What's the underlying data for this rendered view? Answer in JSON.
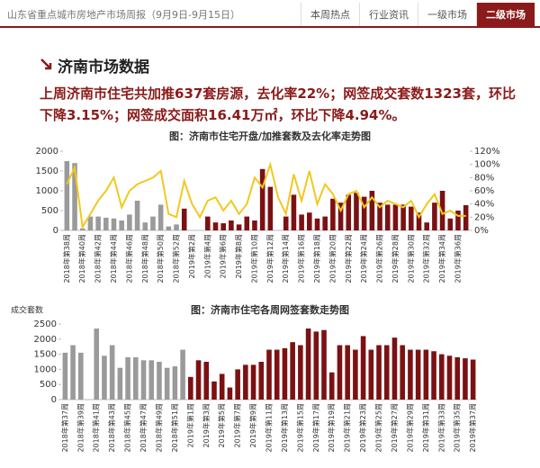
{
  "header": {
    "title": "山东省重点城市房地产市场周报（9月9日-9月15日）",
    "tabs": [
      "本周热点",
      "行业资讯",
      "一级市场",
      "二级市场"
    ],
    "active_tab": 3
  },
  "section": {
    "title": "济南市场数据",
    "summary": "上周济南市住宅共加推637套房源，去化率22%；网签成交套数1323套，环比下降3.15%；网签成交面积16.41万㎡，环比下降4.94%。"
  },
  "chart_data": [
    {
      "type": "bar",
      "title": "图：济南市住宅开盘/加推套数及去化率走势图",
      "categories": [
        "2018年第38周",
        null,
        "2018年第40周",
        null,
        "2018年第42周",
        null,
        "2018年第44周",
        null,
        "2018年第46周",
        null,
        "2018年第48周",
        null,
        "2018年第50周",
        null,
        "2018年第52周",
        null,
        "2019年第2周",
        null,
        "2019年第4周",
        null,
        "2019年第6周",
        null,
        "2019年第8周",
        null,
        "2019年第10周",
        null,
        "2019年第12周",
        null,
        "2019年第14周",
        null,
        "2019年第16周",
        null,
        "2019年第18周",
        null,
        "2019年第20周",
        null,
        "2019年第22周",
        null,
        "2019年第24周",
        null,
        "2019年第26周",
        null,
        "2019年第28周",
        null,
        "2019年第30周",
        null,
        "2019年第32周",
        null,
        "2019年第34周",
        null,
        "2019年第36周",
        null
      ],
      "series": [
        {
          "values": [
            1750,
            1700,
            50,
            350,
            350,
            320,
            300,
            250,
            400,
            750,
            200,
            350,
            650,
            100,
            150,
            550,
            0,
            0,
            350,
            200,
            180,
            250,
            150,
            350,
            250,
            1550,
            1100,
            0,
            350,
            900,
            400,
            450,
            300,
            350,
            800,
            700,
            900,
            950,
            850,
            1000,
            700,
            650,
            650,
            650,
            600,
            450,
            200,
            700,
            1000,
            300,
            500,
            637
          ],
          "colors": [
            "#9a9a9a",
            "#9a9a9a",
            "#9a9a9a",
            "#9a9a9a",
            "#9a9a9a",
            "#9a9a9a",
            "#9a9a9a",
            "#9a9a9a",
            "#9a9a9a",
            "#9a9a9a",
            "#9a9a9a",
            "#9a9a9a",
            "#9a9a9a",
            "#9a9a9a",
            "#9a9a9a",
            "#7b1113",
            "#7b1113",
            "#7b1113",
            "#7b1113",
            "#7b1113",
            "#7b1113",
            "#7b1113",
            "#7b1113",
            "#7b1113",
            "#7b1113",
            "#7b1113",
            "#7b1113",
            "#7b1113",
            "#7b1113",
            "#7b1113",
            "#7b1113",
            "#7b1113",
            "#7b1113",
            "#7b1113",
            "#7b1113",
            "#7b1113",
            "#7b1113",
            "#7b1113",
            "#7b1113",
            "#7b1113",
            "#7b1113",
            "#7b1113",
            "#7b1113",
            "#7b1113",
            "#7b1113",
            "#7b1113",
            "#7b1113",
            "#7b1113",
            "#7b1113",
            "#7b1113",
            "#7b1113",
            "#7b1113"
          ]
        },
        {
          "type": "line",
          "axis": "y2",
          "color": "#f2c81e",
          "values": [
            70,
            95,
            5,
            25,
            45,
            60,
            80,
            35,
            60,
            70,
            75,
            80,
            90,
            25,
            20,
            75,
            40,
            20,
            45,
            50,
            30,
            45,
            25,
            40,
            80,
            65,
            100,
            50,
            25,
            85,
            45,
            90,
            40,
            70,
            55,
            30,
            55,
            60,
            35,
            50,
            35,
            45,
            40,
            35,
            45,
            20,
            40,
            55,
            25,
            30,
            22,
            22
          ]
        }
      ],
      "ylim": [
        0,
        2000
      ],
      "yticks": [
        0,
        500,
        1000,
        1500,
        2000
      ],
      "y2lim": [
        0,
        120
      ],
      "y2ticks": [
        {
          "value": 0,
          "label": "0%"
        },
        {
          "value": 20,
          "label": "20%"
        },
        {
          "value": 40,
          "label": "40%"
        },
        {
          "value": 60,
          "label": "60%"
        },
        {
          "value": 80,
          "label": "80%"
        },
        {
          "value": 100,
          "label": "100%"
        },
        {
          "value": 120,
          "label": "120%"
        }
      ],
      "grid": false
    },
    {
      "type": "bar",
      "title": "图：济南市住宅各周网签套数走势图",
      "y_label": "成交套数",
      "categories": [
        "2018年第37周",
        null,
        "2018年第39周",
        null,
        "2018年第41周",
        null,
        "2018年第43周",
        null,
        "2018年第45周",
        null,
        "2018年第47周",
        null,
        "2018年第49周",
        null,
        "2018年第51周",
        null,
        "2019年第1周",
        null,
        "2019年第3周",
        null,
        "2019年第5周",
        null,
        "2019年第7周",
        null,
        "2019年第9周",
        null,
        "2019年第11周",
        null,
        "2019年第13周",
        null,
        "2019年第15周",
        null,
        "2019年第17周",
        null,
        "2019年第19周",
        null,
        "2019年第21周",
        null,
        "2019年第23周",
        null,
        "2019年第25周",
        null,
        "2019年第27周",
        null,
        "2019年第29周",
        null,
        "2019年第31周",
        null,
        "2019年第33周",
        null,
        "2019年第35周",
        null,
        "2019年第37周"
      ],
      "series": [
        {
          "values": [
            1550,
            1800,
            1550,
            0,
            2350,
            1450,
            1800,
            1050,
            1400,
            1400,
            1300,
            1300,
            1250,
            1050,
            1100,
            1650,
            750,
            1300,
            1250,
            600,
            850,
            400,
            1000,
            1150,
            1150,
            1250,
            1650,
            1650,
            1700,
            1900,
            1800,
            2350,
            2250,
            2300,
            900,
            1800,
            1800,
            1650,
            2100,
            1650,
            1800,
            1800,
            2050,
            1800,
            1650,
            1650,
            1650,
            1600,
            1500,
            1450,
            1400,
            1366,
            1323
          ],
          "colors": [
            "#9a9a9a",
            "#9a9a9a",
            "#9a9a9a",
            "#9a9a9a",
            "#9a9a9a",
            "#9a9a9a",
            "#9a9a9a",
            "#9a9a9a",
            "#9a9a9a",
            "#9a9a9a",
            "#9a9a9a",
            "#9a9a9a",
            "#9a9a9a",
            "#9a9a9a",
            "#9a9a9a",
            "#9a9a9a",
            "#7b1113",
            "#7b1113",
            "#7b1113",
            "#7b1113",
            "#7b1113",
            "#7b1113",
            "#7b1113",
            "#7b1113",
            "#7b1113",
            "#7b1113",
            "#7b1113",
            "#7b1113",
            "#7b1113",
            "#7b1113",
            "#7b1113",
            "#7b1113",
            "#7b1113",
            "#7b1113",
            "#7b1113",
            "#7b1113",
            "#7b1113",
            "#7b1113",
            "#7b1113",
            "#7b1113",
            "#7b1113",
            "#7b1113",
            "#7b1113",
            "#7b1113",
            "#7b1113",
            "#7b1113",
            "#7b1113",
            "#7b1113",
            "#7b1113",
            "#7b1113",
            "#7b1113",
            "#7b1113",
            "#7b1113"
          ]
        }
      ],
      "ylim": [
        0,
        2500
      ],
      "yticks": [
        0,
        500,
        1000,
        1500,
        2000,
        2500
      ],
      "grid": false
    }
  ]
}
